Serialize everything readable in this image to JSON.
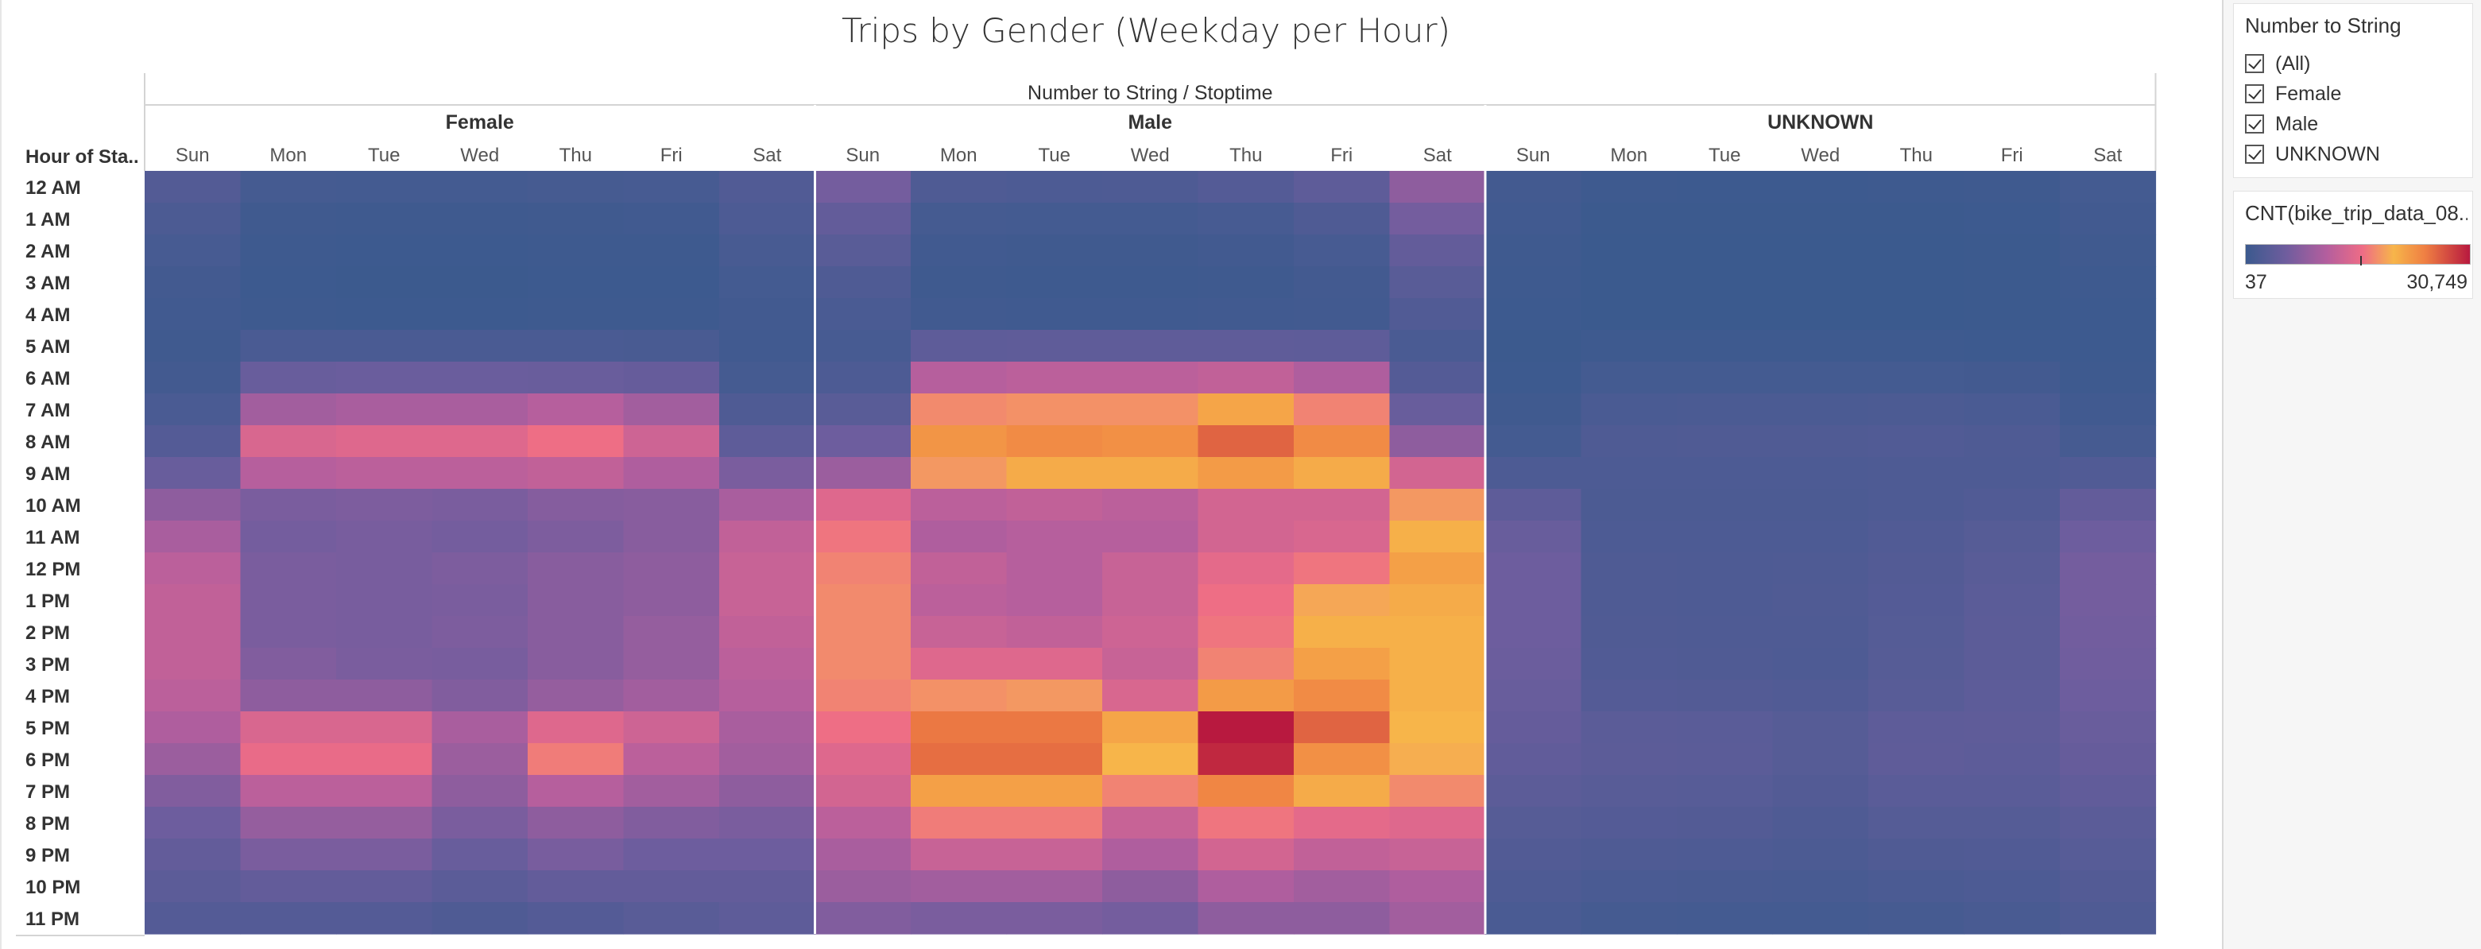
{
  "chart_data": {
    "type": "heatmap",
    "title": "Trips by Gender (Weekday per Hour)",
    "column_header_title": "Number to String / Stoptime",
    "row_header_title": "Hour of Sta..",
    "groups": [
      "Female",
      "Male",
      "UNKNOWN"
    ],
    "days": [
      "Sun",
      "Mon",
      "Tue",
      "Wed",
      "Thu",
      "Fri",
      "Sat"
    ],
    "hours": [
      "12 AM",
      "1 AM",
      "2 AM",
      "3 AM",
      "4 AM",
      "5 AM",
      "6 AM",
      "7 AM",
      "8 AM",
      "9 AM",
      "10 AM",
      "11 AM",
      "12 PM",
      "1 PM",
      "2 PM",
      "3 PM",
      "4 PM",
      "5 PM",
      "6 PM",
      "7 PM",
      "8 PM",
      "9 PM",
      "10 PM",
      "11 PM"
    ],
    "value_range": [
      37,
      30749
    ],
    "values": {
      "Female": [
        [
          2400,
          1000,
          900,
          900,
          1100,
          1200,
          2200
        ],
        [
          1700,
          500,
          450,
          450,
          500,
          600,
          1800
        ],
        [
          1200,
          300,
          250,
          250,
          300,
          350,
          1300
        ],
        [
          800,
          200,
          150,
          150,
          200,
          250,
          900
        ],
        [
          600,
          300,
          250,
          250,
          300,
          300,
          700
        ],
        [
          500,
          1500,
          1500,
          1500,
          1500,
          1400,
          600
        ],
        [
          800,
          4500,
          4700,
          4700,
          4600,
          4300,
          1000
        ],
        [
          1500,
          9000,
          9500,
          9500,
          10500,
          9000,
          2000
        ],
        [
          2500,
          13500,
          14000,
          14000,
          15500,
          12500,
          3500
        ],
        [
          4500,
          10500,
          11000,
          11000,
          11500,
          10000,
          6000
        ],
        [
          7500,
          6000,
          6200,
          6000,
          6800,
          7000,
          9500
        ],
        [
          9500,
          5500,
          5800,
          5500,
          6200,
          7000,
          11500
        ],
        [
          11000,
          6000,
          5800,
          6200,
          7000,
          7500,
          12000
        ],
        [
          11500,
          6000,
          5800,
          6000,
          7000,
          7500,
          12000
        ],
        [
          11500,
          6000,
          5800,
          6200,
          7000,
          8000,
          11500
        ],
        [
          11500,
          6500,
          6000,
          5800,
          7000,
          8000,
          11000
        ],
        [
          11000,
          7500,
          7500,
          6500,
          8000,
          9000,
          10500
        ],
        [
          10000,
          13500,
          13500,
          9500,
          14000,
          12500,
          9500
        ],
        [
          8500,
          15000,
          15000,
          8500,
          16500,
          11000,
          9000
        ],
        [
          6500,
          11000,
          11000,
          7500,
          10500,
          9000,
          7500
        ],
        [
          5000,
          8000,
          8000,
          6000,
          7500,
          6500,
          6000
        ],
        [
          4000,
          6000,
          6000,
          4500,
          5800,
          5000,
          5000
        ],
        [
          3300,
          4000,
          4000,
          3200,
          4000,
          4000,
          4000
        ],
        [
          2500,
          2500,
          2500,
          2000,
          2500,
          3000,
          3500
        ]
      ],
      "Male": [
        [
          5500,
          2000,
          1800,
          1900,
          2500,
          3500,
          7500
        ],
        [
          4000,
          1000,
          900,
          900,
          1200,
          2000,
          5500
        ],
        [
          3000,
          600,
          500,
          500,
          700,
          1200,
          4000
        ],
        [
          2000,
          400,
          350,
          350,
          450,
          800,
          3000
        ],
        [
          1500,
          600,
          550,
          550,
          600,
          700,
          2200
        ],
        [
          1200,
          3500,
          3600,
          3600,
          3600,
          3500,
          1500
        ],
        [
          1800,
          10500,
          11000,
          11000,
          11500,
          10000,
          2500
        ],
        [
          3000,
          17500,
          18000,
          18000,
          22000,
          17000,
          4500
        ],
        [
          5000,
          23500,
          24500,
          24000,
          27000,
          24500,
          7500
        ],
        [
          8500,
          18500,
          21500,
          21500,
          23000,
          21500,
          13000
        ],
        [
          14000,
          11000,
          11500,
          11000,
          13000,
          13000,
          18500
        ],
        [
          16000,
          10000,
          10500,
          10500,
          13000,
          13500,
          21000
        ],
        [
          17000,
          11500,
          10500,
          12000,
          14500,
          16000,
          22500
        ],
        [
          17500,
          11000,
          10500,
          12000,
          15500,
          19500,
          21500
        ],
        [
          17500,
          12000,
          11500,
          12500,
          16000,
          21000,
          21000
        ],
        [
          17500,
          14000,
          14000,
          12000,
          17000,
          22500,
          21000
        ],
        [
          17000,
          18000,
          18500,
          13500,
          23000,
          24500,
          21000
        ],
        [
          15500,
          26000,
          26000,
          22000,
          30749,
          27000,
          20500
        ],
        [
          14000,
          26500,
          26500,
          20500,
          30000,
          24000,
          20000
        ],
        [
          13000,
          22500,
          22500,
          17000,
          25000,
          21500,
          17500
        ],
        [
          11000,
          16500,
          16500,
          12000,
          16000,
          14500,
          14000
        ],
        [
          9500,
          12000,
          12000,
          10000,
          13000,
          11500,
          12000
        ],
        [
          8500,
          9000,
          9000,
          7500,
          10000,
          9000,
          10000
        ],
        [
          6500,
          6000,
          6000,
          5500,
          7500,
          7500,
          9000
        ]
      ],
      "UNKNOWN": [
        [
          800,
          300,
          250,
          250,
          300,
          400,
          900
        ],
        [
          600,
          150,
          120,
          120,
          150,
          250,
          700
        ],
        [
          400,
          80,
          60,
          60,
          80,
          150,
          500
        ],
        [
          300,
          50,
          40,
          37,
          50,
          100,
          350
        ],
        [
          200,
          80,
          60,
          60,
          80,
          100,
          250
        ],
        [
          150,
          300,
          300,
          300,
          300,
          250,
          200
        ],
        [
          250,
          900,
          900,
          900,
          900,
          800,
          350
        ],
        [
          500,
          1500,
          1600,
          1600,
          1700,
          1500,
          600
        ],
        [
          900,
          2000,
          2100,
          2100,
          2200,
          2000,
          1100
        ],
        [
          1800,
          1800,
          1800,
          1800,
          1900,
          1900,
          2200
        ],
        [
          3500,
          1700,
          1700,
          1700,
          1900,
          2200,
          4000
        ],
        [
          4500,
          1800,
          1800,
          1800,
          2200,
          2700,
          5000
        ],
        [
          5000,
          2000,
          1900,
          2000,
          2400,
          3000,
          5500
        ],
        [
          5000,
          2000,
          1900,
          2100,
          2500,
          3200,
          5500
        ],
        [
          5000,
          2100,
          2000,
          2000,
          2600,
          3300,
          5400
        ],
        [
          4800,
          2200,
          2100,
          1900,
          2700,
          3300,
          5200
        ],
        [
          4500,
          2500,
          2400,
          2200,
          2900,
          3400,
          5000
        ],
        [
          4200,
          3200,
          3100,
          2700,
          3500,
          3600,
          4600
        ],
        [
          3800,
          3300,
          3200,
          2700,
          3600,
          3400,
          4300
        ],
        [
          3300,
          2900,
          2800,
          2400,
          3100,
          3100,
          3800
        ],
        [
          2700,
          2500,
          2400,
          2000,
          2600,
          2600,
          3200
        ],
        [
          2300,
          2000,
          1900,
          1700,
          2100,
          2200,
          2800
        ],
        [
          1900,
          1500,
          1400,
          1300,
          1600,
          1800,
          2400
        ],
        [
          1500,
          1000,
          900,
          900,
          1100,
          1400,
          2000
        ]
      ]
    },
    "color_scale": [
      "#3b5a8e",
      "#6f5d9e",
      "#b35e9e",
      "#ee6c86",
      "#f7b54a",
      "#ef7f43",
      "#b8193f"
    ],
    "legend": {
      "title": "CNT(bike_trip_data_08...",
      "min_label": "37",
      "max_label": "30,749",
      "placement": "right"
    }
  },
  "filter": {
    "title": "Number to String",
    "items": [
      {
        "label": "(All)",
        "checked": true
      },
      {
        "label": "Female",
        "checked": true
      },
      {
        "label": "Male",
        "checked": true
      },
      {
        "label": "UNKNOWN",
        "checked": true
      }
    ]
  }
}
